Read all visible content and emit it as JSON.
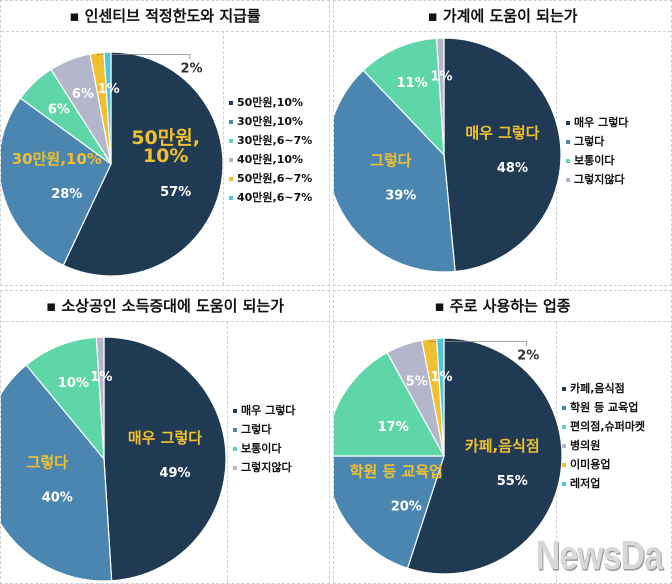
{
  "colors": {
    "c1": "#1f3a52",
    "c2": "#4a86b0",
    "c3": "#5fd6a8",
    "c4": "#b4b6cc",
    "c5": "#f0c030",
    "c6": "#50c6d8",
    "label": "#f0c030"
  },
  "logo": "NewsDa",
  "chart_data": [
    {
      "type": "pie",
      "title": "인센티브 적정한도와 지급률",
      "categories": [
        "50만원,10%",
        "30만원,10%",
        "30만원,6~7%",
        "40만원,10%",
        "50만원,6~7%",
        "40만원,6~7%"
      ],
      "values": [
        57,
        28,
        6,
        6,
        2,
        1
      ],
      "data_labels": [
        "57%",
        "28%",
        "6%",
        "6%",
        "2%",
        "1%"
      ],
      "slice_labels": [
        "50만원,\n10%",
        "30만원,10%",
        "",
        "",
        "",
        ""
      ],
      "legend": "right"
    },
    {
      "type": "pie",
      "title": "가계에 도움이 되는가",
      "categories": [
        "매우 그렇다",
        "그렇다",
        "보통이다",
        "그렇지않다"
      ],
      "values": [
        48,
        39,
        11,
        1
      ],
      "data_labels": [
        "48%",
        "39%",
        "11%",
        "1%"
      ],
      "slice_labels": [
        "매우 그렇다",
        "그렇다",
        "",
        ""
      ],
      "legend": "right"
    },
    {
      "type": "pie",
      "title": "소상공인 소득증대에 도움이 되는가",
      "categories": [
        "매우 그렇다",
        "그렇다",
        "보통이다",
        "그렇지않다"
      ],
      "values": [
        49,
        40,
        10,
        1
      ],
      "data_labels": [
        "49%",
        "40%",
        "10%",
        "1%"
      ],
      "slice_labels": [
        "매우 그렇다",
        "그렇다",
        "",
        ""
      ],
      "legend": "right"
    },
    {
      "type": "pie",
      "title": "주로 사용하는 업종",
      "categories": [
        "카페,음식점",
        "학원 등 교육업",
        "편의점,슈퍼마켓",
        "병의원",
        "이미용업",
        "레저업"
      ],
      "values": [
        55,
        20,
        17,
        5,
        2,
        1
      ],
      "data_labels": [
        "55%",
        "20%",
        "17%",
        "5%",
        "2%",
        "1%"
      ],
      "slice_labels": [
        "카페,음식점",
        "학원 등 교육업",
        "",
        "",
        "",
        ""
      ],
      "legend": "right"
    }
  ]
}
